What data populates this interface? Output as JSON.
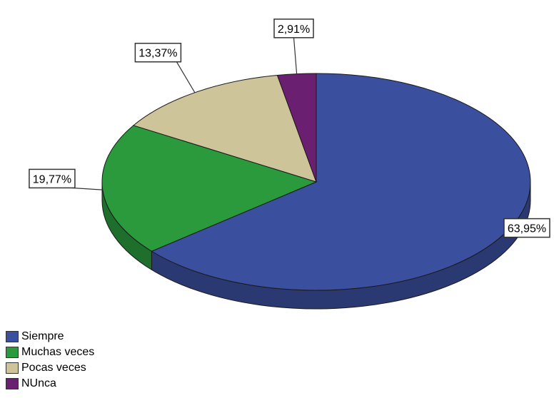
{
  "chart_data": {
    "type": "pie",
    "style": "3d",
    "categories": [
      "Siempre",
      "Muchas veces",
      "Pocas veces",
      "NUnca"
    ],
    "values": [
      63.95,
      19.77,
      13.37,
      2.91
    ],
    "data_labels": [
      "63,95%",
      "19,77%",
      "13,37%",
      "2,91%"
    ],
    "colors": [
      "#3a4f9e",
      "#2a9a3c",
      "#cdc49a",
      "#6b1f70"
    ],
    "legend_position": "bottom-left",
    "title": ""
  },
  "legend": {
    "items": [
      {
        "label": "Siempre",
        "color": "#3a4f9e"
      },
      {
        "label": "Muchas veces",
        "color": "#2a9a3c"
      },
      {
        "label": "Pocas veces",
        "color": "#cdc49a"
      },
      {
        "label": "NUnca",
        "color": "#6b1f70"
      }
    ]
  }
}
